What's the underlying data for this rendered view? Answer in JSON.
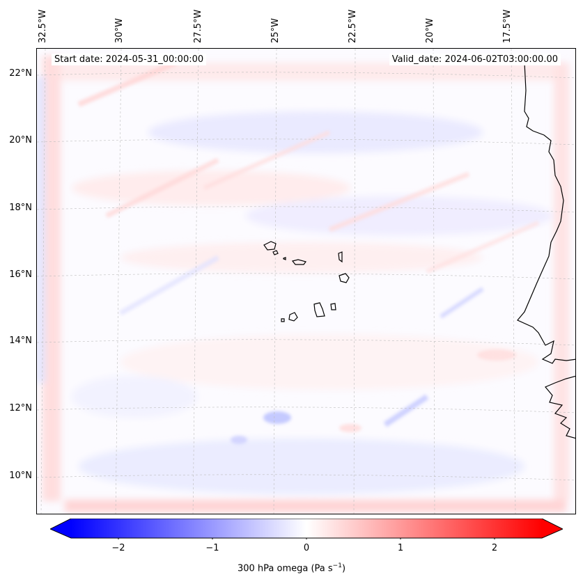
{
  "map": {
    "start_date": "Start date: 2024-05-31_00:00:00",
    "valid_date": "Valid_date: 2024-06-02T03:00:00.00",
    "lon_labels": [
      "32.5°W",
      "30°W",
      "27.5°W",
      "25°W",
      "22.5°W",
      "20°W",
      "17.5°W"
    ],
    "lat_labels": [
      "22°N",
      "20°N",
      "18°N",
      "16°N",
      "14°N",
      "12°N",
      "10°N"
    ],
    "variable": "300 hPa omega",
    "units": "Pa s⁻¹"
  },
  "colorbar": {
    "ticks": [
      "−2",
      "−1",
      "0",
      "1",
      "2"
    ],
    "label_prefix": "300 hPa omega (Pa s",
    "label_sup": "−1",
    "label_suffix": ")",
    "min": -2.5,
    "max": 2.5,
    "colors": {
      "negative": "#0000ff",
      "zero": "#ffffff",
      "positive": "#ff0000"
    }
  }
}
